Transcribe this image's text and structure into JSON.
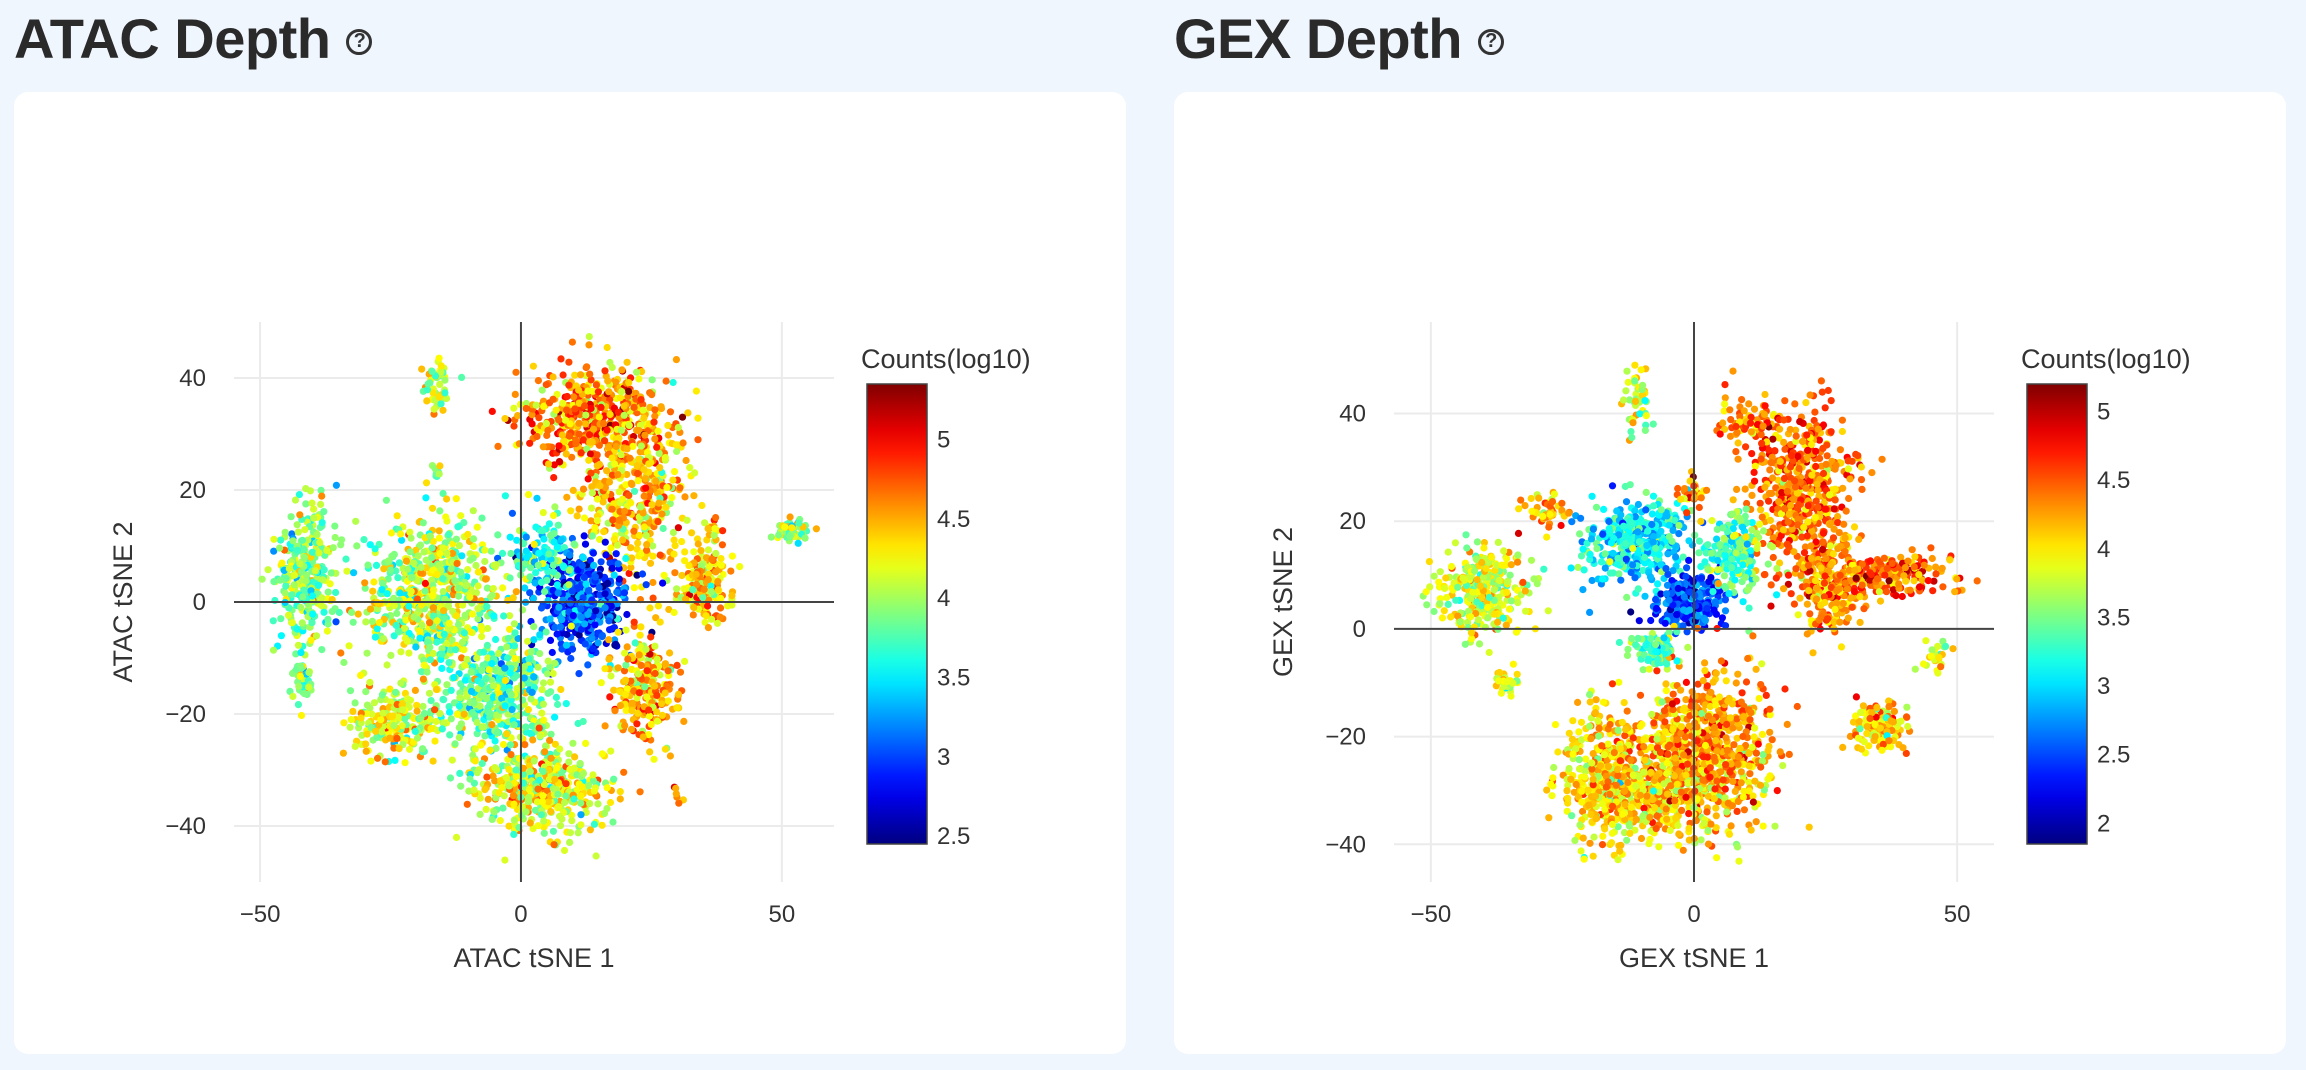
{
  "panels": [
    {
      "id": "atac",
      "title": "ATAC Depth",
      "help_icon": "question-circle-icon",
      "chart_data": {
        "type": "scatter",
        "xlabel": "ATAC tSNE 1",
        "ylabel": "ATAC tSNE 2",
        "xlim": [
          -55,
          60
        ],
        "ylim": [
          -50,
          50
        ],
        "xticks": [
          -50,
          0,
          50
        ],
        "yticks": [
          -40,
          -20,
          0,
          20,
          40
        ],
        "grid": true,
        "colorbar": {
          "title": "Counts(log10)",
          "range": [
            2.45,
            5.35
          ],
          "ticks": [
            2.5,
            3,
            3.5,
            4,
            4.5,
            5
          ],
          "colorscale": "jet"
        },
        "clusters": [
          {
            "cx": 14,
            "cy": 33,
            "sx": 9,
            "sy": 6,
            "n": 500,
            "value": 4.6
          },
          {
            "cx": 22,
            "cy": 18,
            "sx": 7,
            "sy": 8,
            "n": 350,
            "value": 4.4
          },
          {
            "cx": 12,
            "cy": 0,
            "sx": 5,
            "sy": 6,
            "n": 420,
            "value": 3.0
          },
          {
            "cx": 4,
            "cy": 8,
            "sx": 4,
            "sy": 4,
            "n": 120,
            "value": 3.6
          },
          {
            "cx": -41,
            "cy": 5,
            "sx": 3.5,
            "sy": 8,
            "n": 320,
            "value": 3.9
          },
          {
            "cx": -42,
            "cy": -14,
            "sx": 1.5,
            "sy": 3,
            "n": 40,
            "value": 3.9
          },
          {
            "cx": -16,
            "cy": 38,
            "sx": 2,
            "sy": 3,
            "n": 50,
            "value": 4.1
          },
          {
            "cx": -16,
            "cy": 24,
            "sx": 1,
            "sy": 1,
            "n": 8,
            "value": 4.0
          },
          {
            "cx": -17,
            "cy": 2,
            "sx": 8,
            "sy": 8,
            "n": 650,
            "value": 4.05
          },
          {
            "cx": -4,
            "cy": -16,
            "sx": 7,
            "sy": 7,
            "n": 450,
            "value": 3.85
          },
          {
            "cx": -24,
            "cy": -22,
            "sx": 6,
            "sy": 4,
            "n": 220,
            "value": 4.15
          },
          {
            "cx": 4,
            "cy": -34,
            "sx": 8,
            "sy": 5,
            "n": 420,
            "value": 4.2
          },
          {
            "cx": 24,
            "cy": -15,
            "sx": 4,
            "sy": 6,
            "n": 240,
            "value": 4.45
          },
          {
            "cx": 35,
            "cy": 3,
            "sx": 3,
            "sy": 4,
            "n": 170,
            "value": 4.4
          },
          {
            "cx": 37,
            "cy": 13,
            "sx": 1,
            "sy": 1,
            "n": 14,
            "value": 4.5
          },
          {
            "cx": 52,
            "cy": 13,
            "sx": 2,
            "sy": 1.2,
            "n": 50,
            "value": 4.0
          },
          {
            "cx": 30,
            "cy": -35,
            "sx": 0.5,
            "sy": 0.8,
            "n": 6,
            "value": 4.6
          }
        ]
      }
    },
    {
      "id": "gex",
      "title": "GEX Depth",
      "help_icon": "question-circle-icon",
      "chart_data": {
        "type": "scatter",
        "xlabel": "GEX tSNE 1",
        "ylabel": "GEX tSNE 2",
        "xlim": [
          -57,
          57
        ],
        "ylim": [
          -47,
          57
        ],
        "xticks": [
          -50,
          0,
          50
        ],
        "yticks": [
          -40,
          -20,
          0,
          20,
          40
        ],
        "grid": true,
        "colorbar": {
          "title": "Counts(log10)",
          "range": [
            1.85,
            5.2
          ],
          "ticks": [
            2,
            2.5,
            3,
            3.5,
            4,
            4.5,
            5
          ],
          "colorscale": "jet"
        },
        "clusters": [
          {
            "cx": 20,
            "cy": 25,
            "sx": 6,
            "sy": 10,
            "n": 520,
            "value": 4.4
          },
          {
            "cx": 26,
            "cy": 8,
            "sx": 4,
            "sy": 6,
            "n": 220,
            "value": 4.3
          },
          {
            "cx": -10,
            "cy": 16,
            "sx": 7,
            "sy": 5,
            "n": 380,
            "value": 3.1
          },
          {
            "cx": -1,
            "cy": 5,
            "sx": 4,
            "sy": 3,
            "n": 280,
            "value": 2.5
          },
          {
            "cx": 8,
            "cy": 14,
            "sx": 3,
            "sy": 5,
            "n": 180,
            "value": 3.4
          },
          {
            "cx": -40,
            "cy": 7,
            "sx": 5,
            "sy": 5,
            "n": 300,
            "value": 3.85
          },
          {
            "cx": -36,
            "cy": -10,
            "sx": 1.5,
            "sy": 2,
            "n": 30,
            "value": 3.8
          },
          {
            "cx": -11,
            "cy": 42,
            "sx": 1.5,
            "sy": 4,
            "n": 45,
            "value": 3.7
          },
          {
            "cx": 0,
            "cy": 25,
            "sx": 1.5,
            "sy": 2,
            "n": 30,
            "value": 4.4
          },
          {
            "cx": 38,
            "cy": 10,
            "sx": 7,
            "sy": 2.5,
            "n": 180,
            "value": 4.45
          },
          {
            "cx": 46,
            "cy": -5,
            "sx": 1.5,
            "sy": 2,
            "n": 25,
            "value": 3.9
          },
          {
            "cx": -4,
            "cy": -28,
            "sx": 9,
            "sy": 7,
            "n": 650,
            "value": 4.1
          },
          {
            "cx": 3,
            "cy": -20,
            "sx": 7,
            "sy": 8,
            "n": 450,
            "value": 4.3
          },
          {
            "cx": -17,
            "cy": -28,
            "sx": 5,
            "sy": 8,
            "n": 350,
            "value": 4.05
          },
          {
            "cx": 35,
            "cy": -18,
            "sx": 3,
            "sy": 3,
            "n": 140,
            "value": 4.1
          },
          {
            "cx": -7,
            "cy": -4,
            "sx": 3,
            "sy": 2,
            "n": 100,
            "value": 3.4
          },
          {
            "cx": 10,
            "cy": 38,
            "sx": 3,
            "sy": 2.5,
            "n": 60,
            "value": 4.4
          },
          {
            "cx": -28,
            "cy": 22,
            "sx": 3,
            "sy": 2,
            "n": 50,
            "value": 4.2
          }
        ]
      }
    }
  ]
}
